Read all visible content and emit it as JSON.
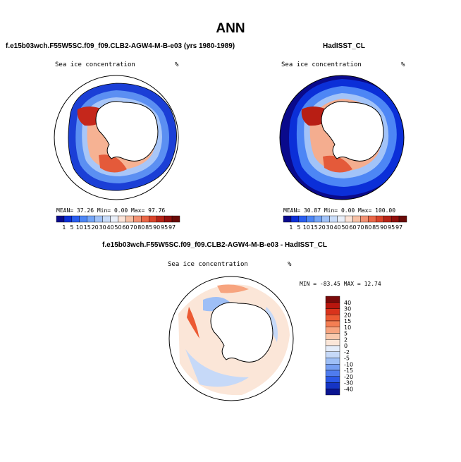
{
  "page_title": "ANN",
  "panels": [
    {
      "subtitle": "f.e15b03wch.F55W5SC.f09_f09.CLB2-AGW4-M-B-e03 (yrs 1980-1989)",
      "var_label": "Sea ice concentration",
      "units": "%",
      "stats": {
        "mean_label": "MEAN=",
        "mean": "37.26",
        "min_label": "Min=",
        "min": "0.00",
        "max_label": "Max=",
        "max": "97.76"
      }
    },
    {
      "subtitle": "HadISST_CL",
      "var_label": "Sea ice concentration",
      "units": "%",
      "stats": {
        "mean_label": "MEAN=",
        "mean": "30.87",
        "min_label": "Min=",
        "min": "0.00",
        "max_label": "Max=",
        "max": "100.00"
      }
    },
    {
      "subtitle": "f.e15b03wch.F55W5SC.f09_f09.CLB2-AGW4-M-B-e03 - HadISST_CL",
      "var_label": "Sea ice concentration",
      "units": "%",
      "stats": {
        "min_label": "MIN =",
        "min": "-83.45",
        "max_label": "MAX =",
        "max": "12.74"
      }
    }
  ],
  "colorbar_top": {
    "labels": [
      "1",
      "5",
      "10",
      "15",
      "20",
      "30",
      "40",
      "50",
      "60",
      "70",
      "80",
      "85",
      "90",
      "95",
      "97"
    ],
    "colors": [
      "#0a0a8c",
      "#0b2fd8",
      "#2a5ef0",
      "#4d86f5",
      "#76a6f7",
      "#a2c3f8",
      "#c9dcf9",
      "#e9eff9",
      "#fbe3d7",
      "#f7c1a6",
      "#f29274",
      "#ea6848",
      "#d9442a",
      "#b52316",
      "#8f0f0c",
      "#6a0a08"
    ]
  },
  "colorbar_diff": {
    "labels": [
      "40",
      "30",
      "20",
      "15",
      "10",
      "5",
      "2",
      "0",
      "-2",
      "-5",
      "-10",
      "-15",
      "-20",
      "-30",
      "-40"
    ],
    "colors": [
      "#7a0a0a",
      "#b8160e",
      "#d9331c",
      "#ec5a33",
      "#f47e53",
      "#f7a47f",
      "#f9c9ad",
      "#fbe6d8",
      "#e4ecf9",
      "#c6d9f8",
      "#9ebff6",
      "#769ff2",
      "#4f7cee",
      "#2b58e6",
      "#1534c4",
      "#0a1490"
    ]
  },
  "chart_data": [
    {
      "type": "heatmap",
      "title": "Sea ice concentration",
      "units": "%",
      "projection": "south-polar-stereographic",
      "mean": 37.26,
      "min": 0.0,
      "max": 97.76,
      "levels": [
        1,
        5,
        10,
        15,
        20,
        30,
        40,
        50,
        60,
        70,
        80,
        85,
        90,
        95,
        97
      ]
    },
    {
      "type": "heatmap",
      "title": "Sea ice concentration",
      "units": "%",
      "projection": "south-polar-stereographic",
      "mean": 30.87,
      "min": 0.0,
      "max": 100.0,
      "levels": [
        1,
        5,
        10,
        15,
        20,
        30,
        40,
        50,
        60,
        70,
        80,
        85,
        90,
        95,
        97
      ]
    },
    {
      "type": "heatmap",
      "title": "Sea ice concentration",
      "units": "%",
      "projection": "south-polar-stereographic",
      "min": -83.45,
      "max": 12.74,
      "levels": [
        -40,
        -30,
        -20,
        -15,
        -10,
        -5,
        -2,
        0,
        2,
        5,
        10,
        15,
        20,
        30,
        40
      ]
    }
  ]
}
